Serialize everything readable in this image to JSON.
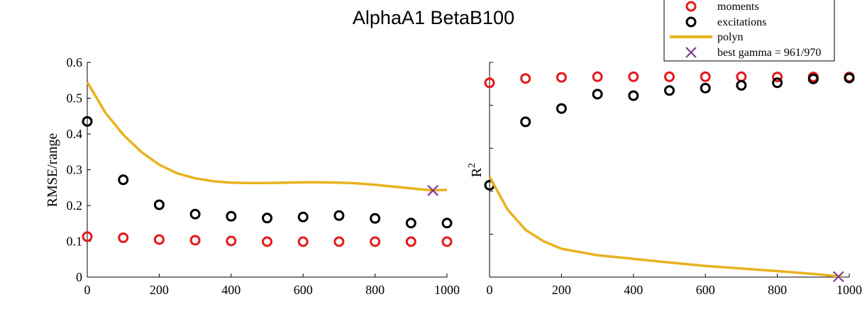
{
  "figure_title": "AlphaA1 BetaB100",
  "legend": {
    "entries": [
      {
        "label": "moments",
        "marker": "circle",
        "color": "#e41a1c"
      },
      {
        "label": "excitations",
        "marker": "circle",
        "color": "#000000"
      },
      {
        "label": "polyn",
        "marker": "line",
        "color": "#e8b21e"
      },
      {
        "label": "best gamma = 961/970",
        "marker": "x",
        "color": "#7e3d8f"
      }
    ]
  },
  "chart_data": [
    {
      "type": "scatter",
      "ylabel": "RMSE/range",
      "xlim": [
        0,
        1000
      ],
      "ylim": [
        0,
        0.6
      ],
      "xticks": [
        0,
        200,
        400,
        600,
        800,
        1000
      ],
      "xtick_labels": [
        "0",
        "200",
        "400",
        "600",
        "800",
        "1000"
      ],
      "yticks": [
        0,
        0.1,
        0.2,
        0.3,
        0.4,
        0.5,
        0.6
      ],
      "ytick_labels": [
        "0",
        "0.1",
        "0.2",
        "0.3",
        "0.4",
        "0.5",
        "0.6"
      ],
      "series": [
        {
          "name": "moments",
          "kind": "markers",
          "color": "#e41a1c",
          "x": [
            0,
            100,
            200,
            300,
            400,
            500,
            600,
            700,
            800,
            900,
            1000
          ],
          "y": [
            0.113,
            0.11,
            0.105,
            0.103,
            0.101,
            0.099,
            0.099,
            0.099,
            0.099,
            0.099,
            0.099
          ]
        },
        {
          "name": "excitations",
          "kind": "markers",
          "color": "#000000",
          "x": [
            0,
            100,
            200,
            300,
            400,
            500,
            600,
            700,
            800,
            900,
            1000
          ],
          "y": [
            0.435,
            0.272,
            0.202,
            0.176,
            0.17,
            0.165,
            0.168,
            0.172,
            0.164,
            0.151,
            0.151
          ]
        },
        {
          "name": "polyn",
          "kind": "line",
          "color": "#e8b21e",
          "x": [
            0,
            50,
            100,
            150,
            200,
            250,
            300,
            350,
            400,
            450,
            500,
            550,
            600,
            650,
            700,
            750,
            800,
            850,
            900,
            961,
            1000
          ],
          "y": [
            0.545,
            0.46,
            0.398,
            0.35,
            0.314,
            0.29,
            0.276,
            0.268,
            0.264,
            0.263,
            0.263,
            0.264,
            0.265,
            0.265,
            0.264,
            0.262,
            0.258,
            0.253,
            0.248,
            0.242,
            0.244
          ]
        },
        {
          "name": "best gamma = 961/970",
          "kind": "x-marker",
          "color": "#7e3d8f",
          "x": [
            961
          ],
          "y": [
            0.242
          ]
        }
      ]
    },
    {
      "type": "scatter",
      "ylabel": "R",
      "ylabel_superscript": "2",
      "xlim": [
        0,
        1000
      ],
      "ylim": [
        0,
        1
      ],
      "xticks": [
        0,
        200,
        400,
        600,
        800,
        1000
      ],
      "xtick_labels": [
        "0",
        "200",
        "400",
        "600",
        "800",
        "1000"
      ],
      "yticks": [
        0,
        0.2,
        0.4,
        0.6,
        0.8,
        1
      ],
      "ytick_labels": [
        "",
        "",
        "",
        "",
        "",
        ""
      ],
      "series": [
        {
          "name": "moments",
          "kind": "markers",
          "color": "#e41a1c",
          "x": [
            0,
            100,
            200,
            300,
            400,
            500,
            600,
            700,
            800,
            900,
            1000
          ],
          "y": [
            0.905,
            0.925,
            0.93,
            0.933,
            0.933,
            0.933,
            0.933,
            0.933,
            0.932,
            0.932,
            0.932
          ]
        },
        {
          "name": "excitations",
          "kind": "markers",
          "color": "#000000",
          "x": [
            0,
            100,
            200,
            300,
            400,
            500,
            600,
            700,
            800,
            900,
            1000
          ],
          "y": [
            0.428,
            0.723,
            0.785,
            0.852,
            0.845,
            0.869,
            0.88,
            0.893,
            0.905,
            0.923,
            0.927
          ]
        },
        {
          "name": "polyn",
          "kind": "line",
          "color": "#e8b21e",
          "x": [
            0,
            50,
            100,
            150,
            200,
            300,
            400,
            500,
            600,
            700,
            800,
            900,
            980
          ],
          "y": [
            0.468,
            0.315,
            0.22,
            0.167,
            0.132,
            0.102,
            0.085,
            0.068,
            0.052,
            0.04,
            0.028,
            0.015,
            0.002
          ]
        },
        {
          "name": "best gamma = 961/970",
          "kind": "x-marker",
          "color": "#7e3d8f",
          "x": [
            970
          ],
          "y": [
            0.002
          ]
        }
      ]
    }
  ]
}
